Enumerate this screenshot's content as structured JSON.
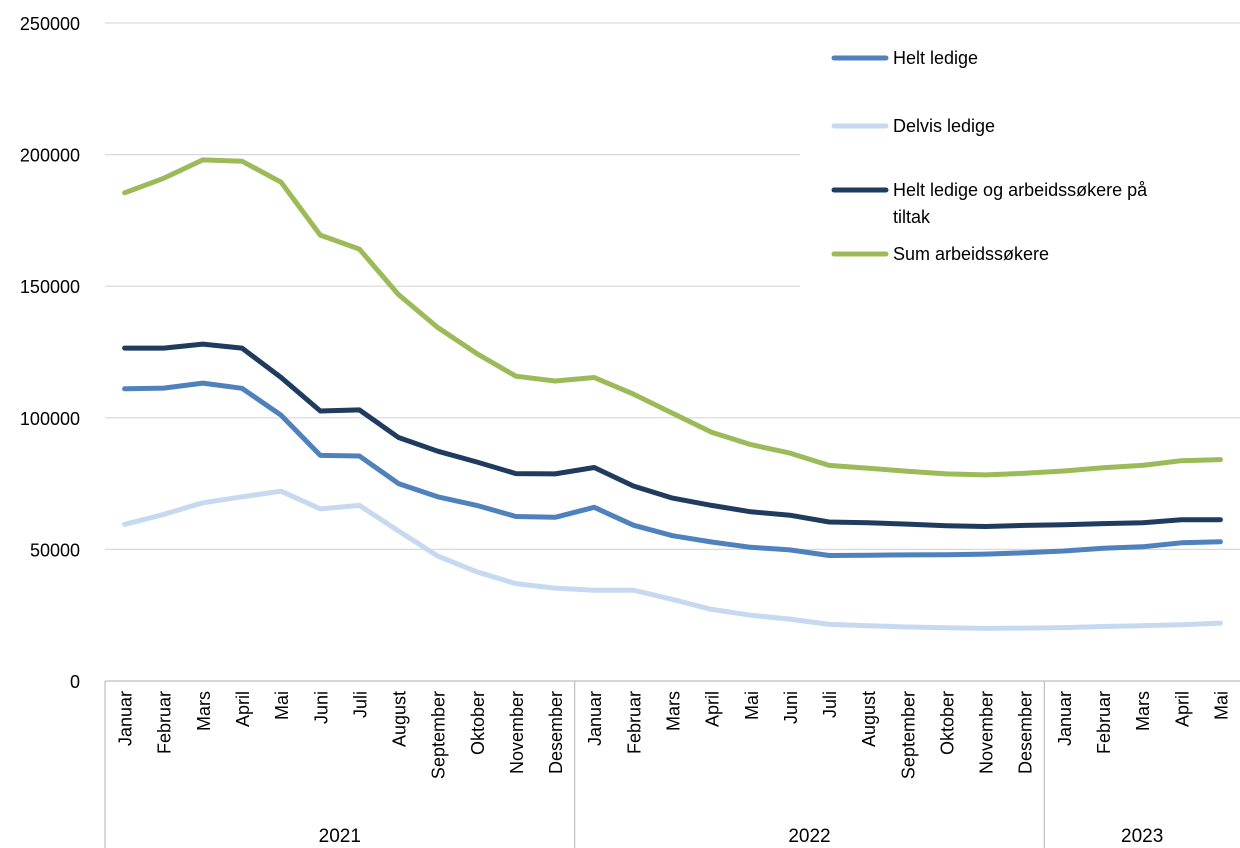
{
  "chart_data": {
    "type": "line",
    "title": "",
    "xlabel": "",
    "ylabel": "",
    "ylim": [
      0,
      250000
    ],
    "yticks": [
      0,
      50000,
      100000,
      150000,
      200000,
      250000
    ],
    "ytick_labels": [
      "0",
      "50000",
      "100000",
      "150000",
      "200000",
      "250000"
    ],
    "grid": "horizontal",
    "legend_position": "top-right",
    "categories": [
      "Januar",
      "Februar",
      "Mars",
      "April",
      "Mai",
      "Juni",
      "Juli",
      "August",
      "September",
      "Oktober",
      "November",
      "Desember",
      "Januar",
      "Februar",
      "Mars",
      "April",
      "Mai",
      "Juni",
      "Juli",
      "August",
      "September",
      "Oktober",
      "November",
      "Desember",
      "Januar",
      "Februar",
      "Mars",
      "April",
      "Mai"
    ],
    "year_groups": [
      {
        "label": "2021",
        "count": 12
      },
      {
        "label": "2022",
        "count": 12
      },
      {
        "label": "2023",
        "count": 5
      }
    ],
    "series": [
      {
        "name": "Helt ledige",
        "color": "#4f81bd",
        "values": [
          111000,
          111300,
          113200,
          111200,
          101000,
          85700,
          85500,
          75000,
          70000,
          66700,
          62500,
          62200,
          66000,
          59200,
          55200,
          52800,
          50800,
          49800,
          47700,
          47800,
          47900,
          48000,
          48200,
          48700,
          49400,
          50400,
          51000,
          52500,
          52900
        ]
      },
      {
        "name": "Delvis ledige",
        "color": "#c6d9f0",
        "values": [
          59500,
          63300,
          67700,
          70000,
          72100,
          65400,
          66700,
          57000,
          47500,
          41500,
          37000,
          35300,
          34500,
          34500,
          31000,
          27200,
          25000,
          23500,
          21500,
          21000,
          20500,
          20200,
          20000,
          20100,
          20300,
          20700,
          21000,
          21400,
          22000
        ]
      },
      {
        "name": "Helt ledige og arbeidssøkere på tiltak",
        "color": "#1f3b5e",
        "values": [
          126500,
          126500,
          128000,
          126500,
          115300,
          102600,
          103000,
          92500,
          87300,
          83200,
          78800,
          78700,
          81100,
          74100,
          69500,
          66700,
          64300,
          63000,
          60400,
          60100,
          59600,
          59000,
          58700,
          59100,
          59400,
          59800,
          60100,
          61300,
          61300
        ]
      },
      {
        "name": "Sum arbeidssøkere",
        "color": "#9bbb59",
        "values": [
          185500,
          191000,
          198000,
          197500,
          189500,
          169400,
          164100,
          146800,
          134300,
          124400,
          115800,
          114000,
          115300,
          109000,
          101700,
          94500,
          89800,
          86600,
          81900,
          80800,
          79700,
          78700,
          78300,
          78900,
          79800,
          81000,
          81900,
          83700,
          84100
        ]
      }
    ]
  }
}
